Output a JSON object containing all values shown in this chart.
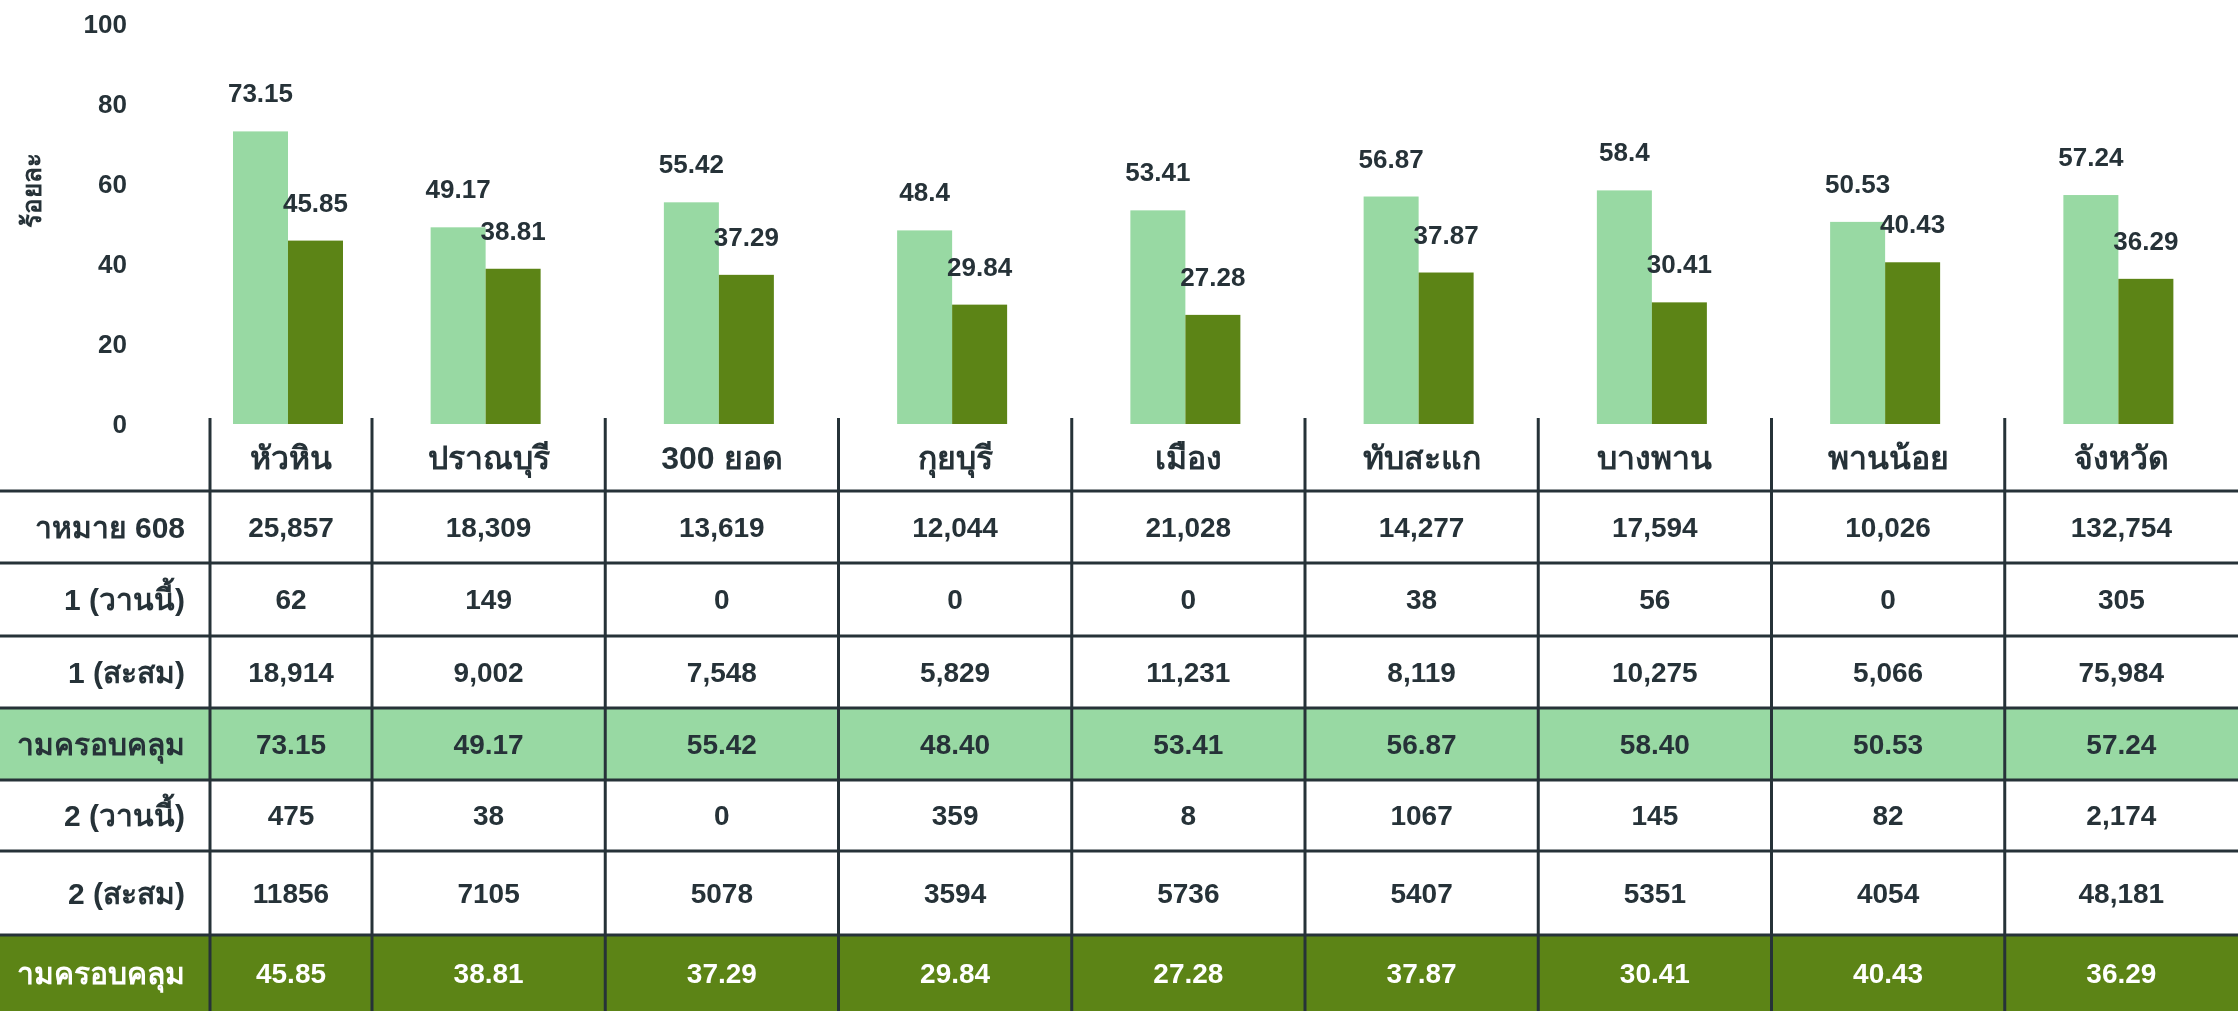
{
  "chart_data": {
    "type": "bar",
    "ylabel": "ร้อยละ",
    "categories": [
      "หัวหิน",
      "ปราณบุรี",
      "300 ยอด",
      "กุยบุรี",
      "เมือง",
      "ทับสะแก",
      "บางพาน",
      "พานน้อย",
      "จังหวัด"
    ],
    "series": [
      {
        "color": "#98d9a3",
        "values": [
          73.15,
          49.17,
          55.42,
          48.4,
          53.41,
          56.87,
          58.4,
          50.53,
          57.24
        ]
      },
      {
        "color": "#5c8416",
        "values": [
          45.85,
          38.81,
          37.29,
          29.84,
          27.28,
          37.87,
          30.41,
          40.43,
          36.29
        ]
      }
    ],
    "ylim": [
      0,
      100
    ],
    "yticks": [
      0,
      20,
      40,
      60,
      80,
      100
    ],
    "data_labels": true,
    "annotations": [
      "าหมาย 608",
      "25,857",
      "18,309",
      "13,619",
      "12,044",
      "21,028",
      "14,277",
      "17,594",
      "10,026",
      "132,754",
      "1 (วานนี้)",
      "62",
      "149",
      "0",
      "0",
      "0",
      "38",
      "56",
      "0",
      "305",
      "1 (สะสม)",
      "18,914",
      "9,002",
      "7,548",
      "5,829",
      "11,231",
      "8,119",
      "10,275",
      "5,066",
      "75,984",
      "ามครอบคลุม",
      "73.15",
      "49.17",
      "55.42",
      "48.40",
      "53.41",
      "56.87",
      "58.40",
      "50.53",
      "57.24",
      "2 (วานนี้)",
      "475",
      "38",
      "0",
      "359",
      "8",
      "1067",
      "145",
      "82",
      "2,174",
      "2 (สะสม)",
      "11856",
      "7105",
      "5078",
      "3594",
      "5736",
      "5407",
      "5351",
      "4054",
      "48,181",
      "ามครอบคลุม",
      "45.85",
      "38.81",
      "37.29",
      "29.84",
      "27.28",
      "37.87",
      "30.41",
      "40.43",
      "36.29"
    ]
  }
}
